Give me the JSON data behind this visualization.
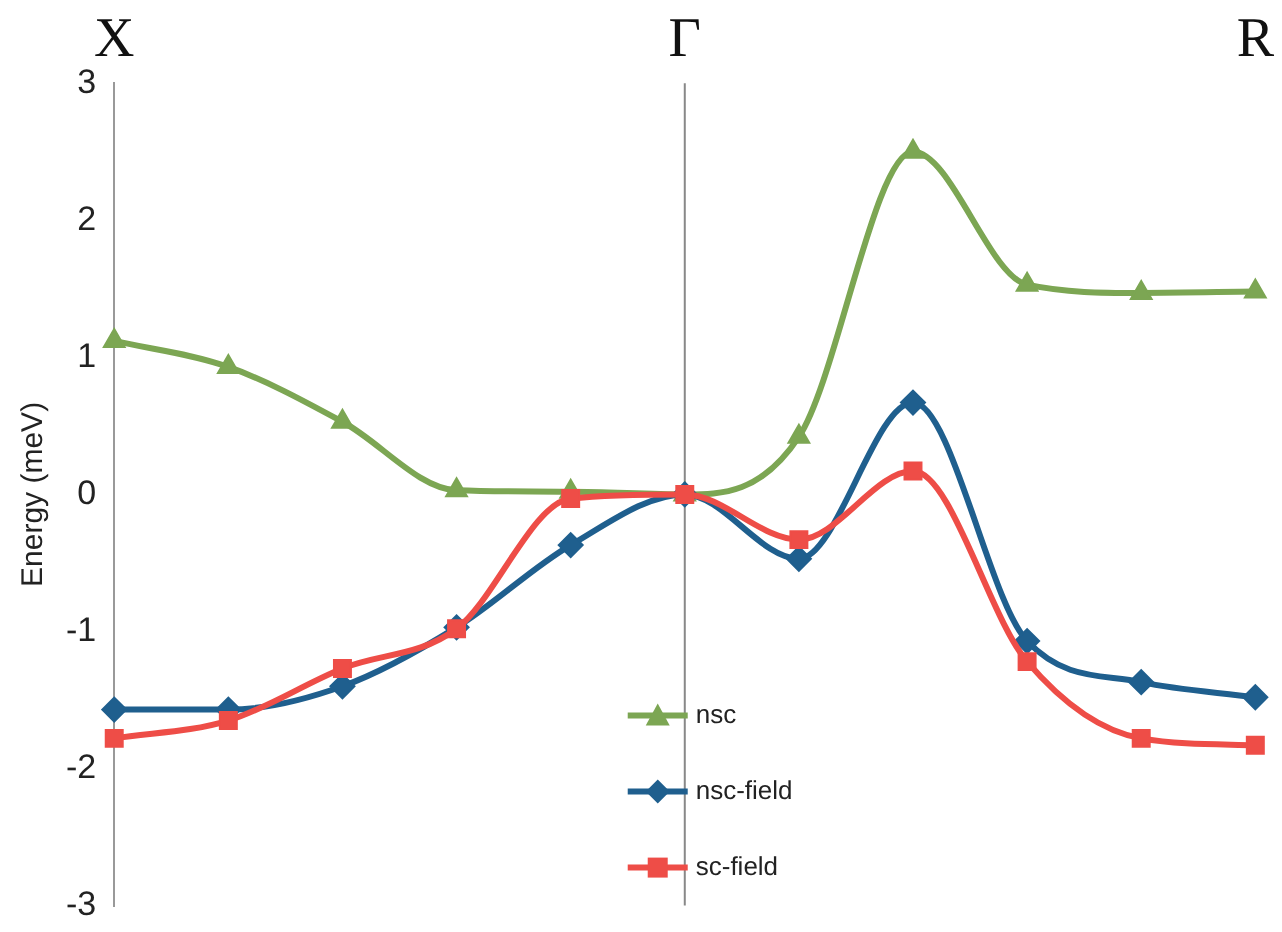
{
  "chart_data": {
    "type": "line",
    "ylabel": "Energy (meV)",
    "categories": [
      "X",
      null,
      null,
      null,
      null,
      "Γ",
      null,
      null,
      null,
      null,
      "R"
    ],
    "series": [
      {
        "name": "nsc",
        "color": "#7ca653",
        "marker": "triangle",
        "values": [
          1.12,
          0.93,
          0.53,
          0.03,
          0.02,
          0.0,
          0.42,
          2.5,
          1.53,
          1.47,
          1.48
        ]
      },
      {
        "name": "nsc-field",
        "color": "#1f5f8e",
        "marker": "diamond",
        "values": [
          -1.57,
          -1.57,
          -1.4,
          -0.97,
          -0.37,
          0.0,
          -0.47,
          0.67,
          -1.07,
          -1.37,
          -1.48
        ]
      },
      {
        "name": "sc-field",
        "color": "#ee4d47",
        "marker": "square",
        "values": [
          -1.78,
          -1.65,
          -1.27,
          -0.98,
          -0.03,
          0.0,
          -0.33,
          0.17,
          -1.22,
          -1.78,
          -1.83
        ]
      }
    ],
    "ylim": [
      -3,
      3
    ],
    "yticks": [
      -3,
      -2,
      -1,
      0,
      1,
      2,
      3
    ],
    "ref_lines": [
      {
        "axis": "x",
        "value": "Γ",
        "color": "#888888"
      }
    ],
    "grid": false,
    "legend": "bottom",
    "line_style": "solid"
  }
}
